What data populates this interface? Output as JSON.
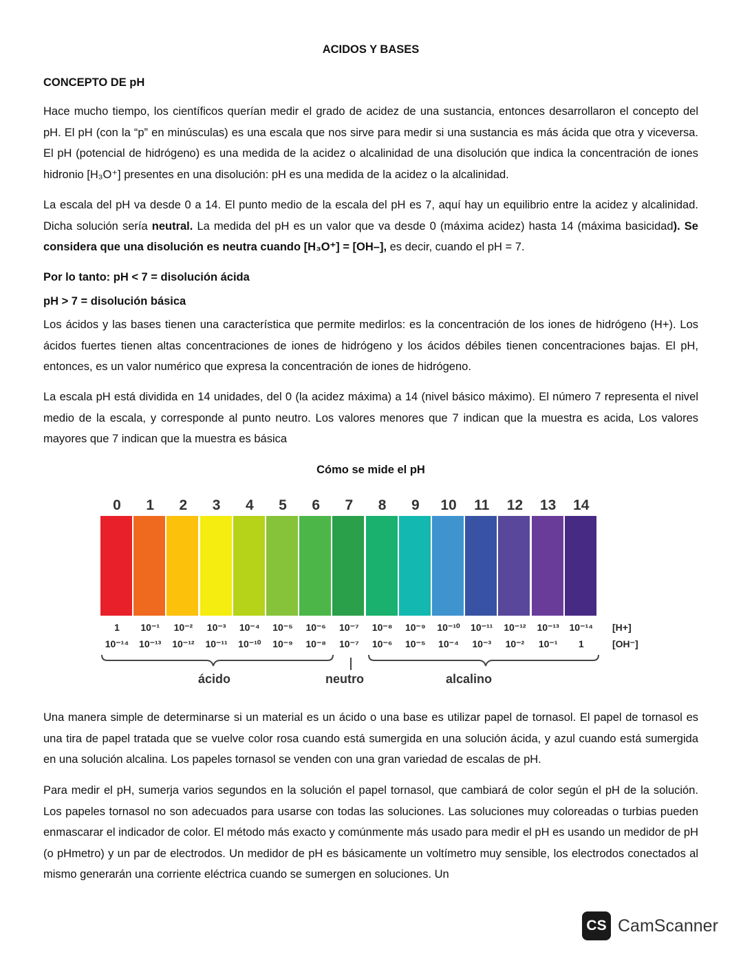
{
  "title": "ACIDOS Y BASES",
  "paragraphs": [
    [
      {
        "t": "CONCEPTO DE pH",
        "b": true
      }
    ],
    [
      {
        "t": "Hace mucho tiempo, los científicos querían medir el grado de acidez de una sustancia, entonces desarrollaron el concepto del pH. El pH (con la “p” en minúsculas) es una escala que nos sirve para medir si una sustancia es más ácida que otra y viceversa. El pH (potencial de hidrógeno) es una medida de la acidez o alcalinidad de una disolución que indica la concentración de iones hidronio [H₃O⁺] presentes en una disolución: pH es una medida de la acidez o la alcalinidad."
      }
    ],
    [
      {
        "t": "La escala del pH va desde 0 a 14. El punto medio de la escala del pH es 7, aquí hay un equilibrio entre la acidez y alcalinidad. Dicha solución sería "
      },
      {
        "t": "neutral.",
        "b": true
      },
      {
        "t": " La medida del pH es un valor que va desde 0 (máxima acidez) hasta 14 (máxima basicidad"
      },
      {
        "t": "). Se considera que una disolución es neutra cuando [H₃O⁺] = [OH–],",
        "b": true
      },
      {
        "t": " es decir, cuando el pH = 7."
      }
    ],
    [
      {
        "t": "Por lo tanto: pH < 7 = disolución ácida",
        "b": true
      }
    ],
    [
      {
        "t": "pH > 7 = disolución básica",
        "b": true
      }
    ],
    [
      {
        "t": "Los ácidos y las bases tienen una característica que permite medirlos: es la concentración de los iones de hidrógeno (H+). Los ácidos fuertes tienen altas concentraciones de iones de hidrógeno y los ácidos débiles tienen concentraciones bajas. El pH, entonces, es un valor numérico que expresa la concentración de iones de hidrógeno."
      }
    ],
    [
      {
        "t": "La escala pH está dividida en 14 unidades, del 0 (la acidez máxima) a 14 (nivel básico máximo). El número 7 representa el nivel medio de la escala, y corresponde al punto neutro. Los valores menores que 7 indican que la muestra es acida, Los valores mayores que 7 indican que la muestra es básica"
      }
    ],
    [
      {
        "t": "Una manera simple de determinarse si un material es un ácido o una base es utilizar papel de tornasol. El papel de tornasol es una tira de papel tratada que se vuelve color rosa cuando está sumergida en una solución ácida, y azul cuando está sumergida en una solución alcalina. Los papeles tornasol se venden con una gran variedad de escalas de pH."
      }
    ],
    [
      {
        "t": "Para medir el pH, sumerja varios segundos en la solución el papel tornasol, que cambiará de color según el pH de la solución. Los papeles tornasol no son adecuados para usarse con todas las soluciones. Las soluciones muy coloreadas o turbias pueden enmascarar el indicador de color. El método más exacto y comúnmente más usado para medir el pH es usando un medidor de pH (o pHmetro) y un par de electrodos. Un medidor de pH es básicamente un voltímetro muy sensible, los electrodos conectados al mismo generarán una corriente eléctrica cuando se sumergen en soluciones. Un"
      }
    ]
  ],
  "figure": {
    "caption": "Cómo se mide el pH",
    "ph_values": [
      "0",
      "1",
      "2",
      "3",
      "4",
      "5",
      "6",
      "7",
      "8",
      "9",
      "10",
      "11",
      "12",
      "13",
      "14"
    ],
    "colors": [
      "#e8202a",
      "#ef6a1f",
      "#fbc10b",
      "#f5ec10",
      "#b6d319",
      "#86c33a",
      "#4cb748",
      "#2aa04a",
      "#19b16d",
      "#13b9b1",
      "#3f93cf",
      "#3853a3",
      "#59479b",
      "#6a3c9a",
      "#472a83"
    ],
    "h_label": "[H+]",
    "oh_label": "[OH⁻]",
    "h_conc": [
      "1",
      "10⁻¹",
      "10⁻²",
      "10⁻³",
      "10⁻⁴",
      "10⁻⁵",
      "10⁻⁶",
      "10⁻⁷",
      "10⁻⁸",
      "10⁻⁹",
      "10⁻¹⁰",
      "10⁻¹¹",
      "10⁻¹²",
      "10⁻¹³",
      "10⁻¹⁴"
    ],
    "oh_conc": [
      "10⁻¹⁴",
      "10⁻¹³",
      "10⁻¹²",
      "10⁻¹¹",
      "10⁻¹⁰",
      "10⁻⁹",
      "10⁻⁸",
      "10⁻⁷",
      "10⁻⁶",
      "10⁻⁵",
      "10⁻⁴",
      "10⁻³",
      "10⁻²",
      "10⁻¹",
      "1"
    ],
    "acid_label": "ácido",
    "neutral_label": "neutro",
    "alkaline_label": "alcalino"
  },
  "watermark": {
    "icon_text": "CS",
    "text": "CamScanner"
  }
}
